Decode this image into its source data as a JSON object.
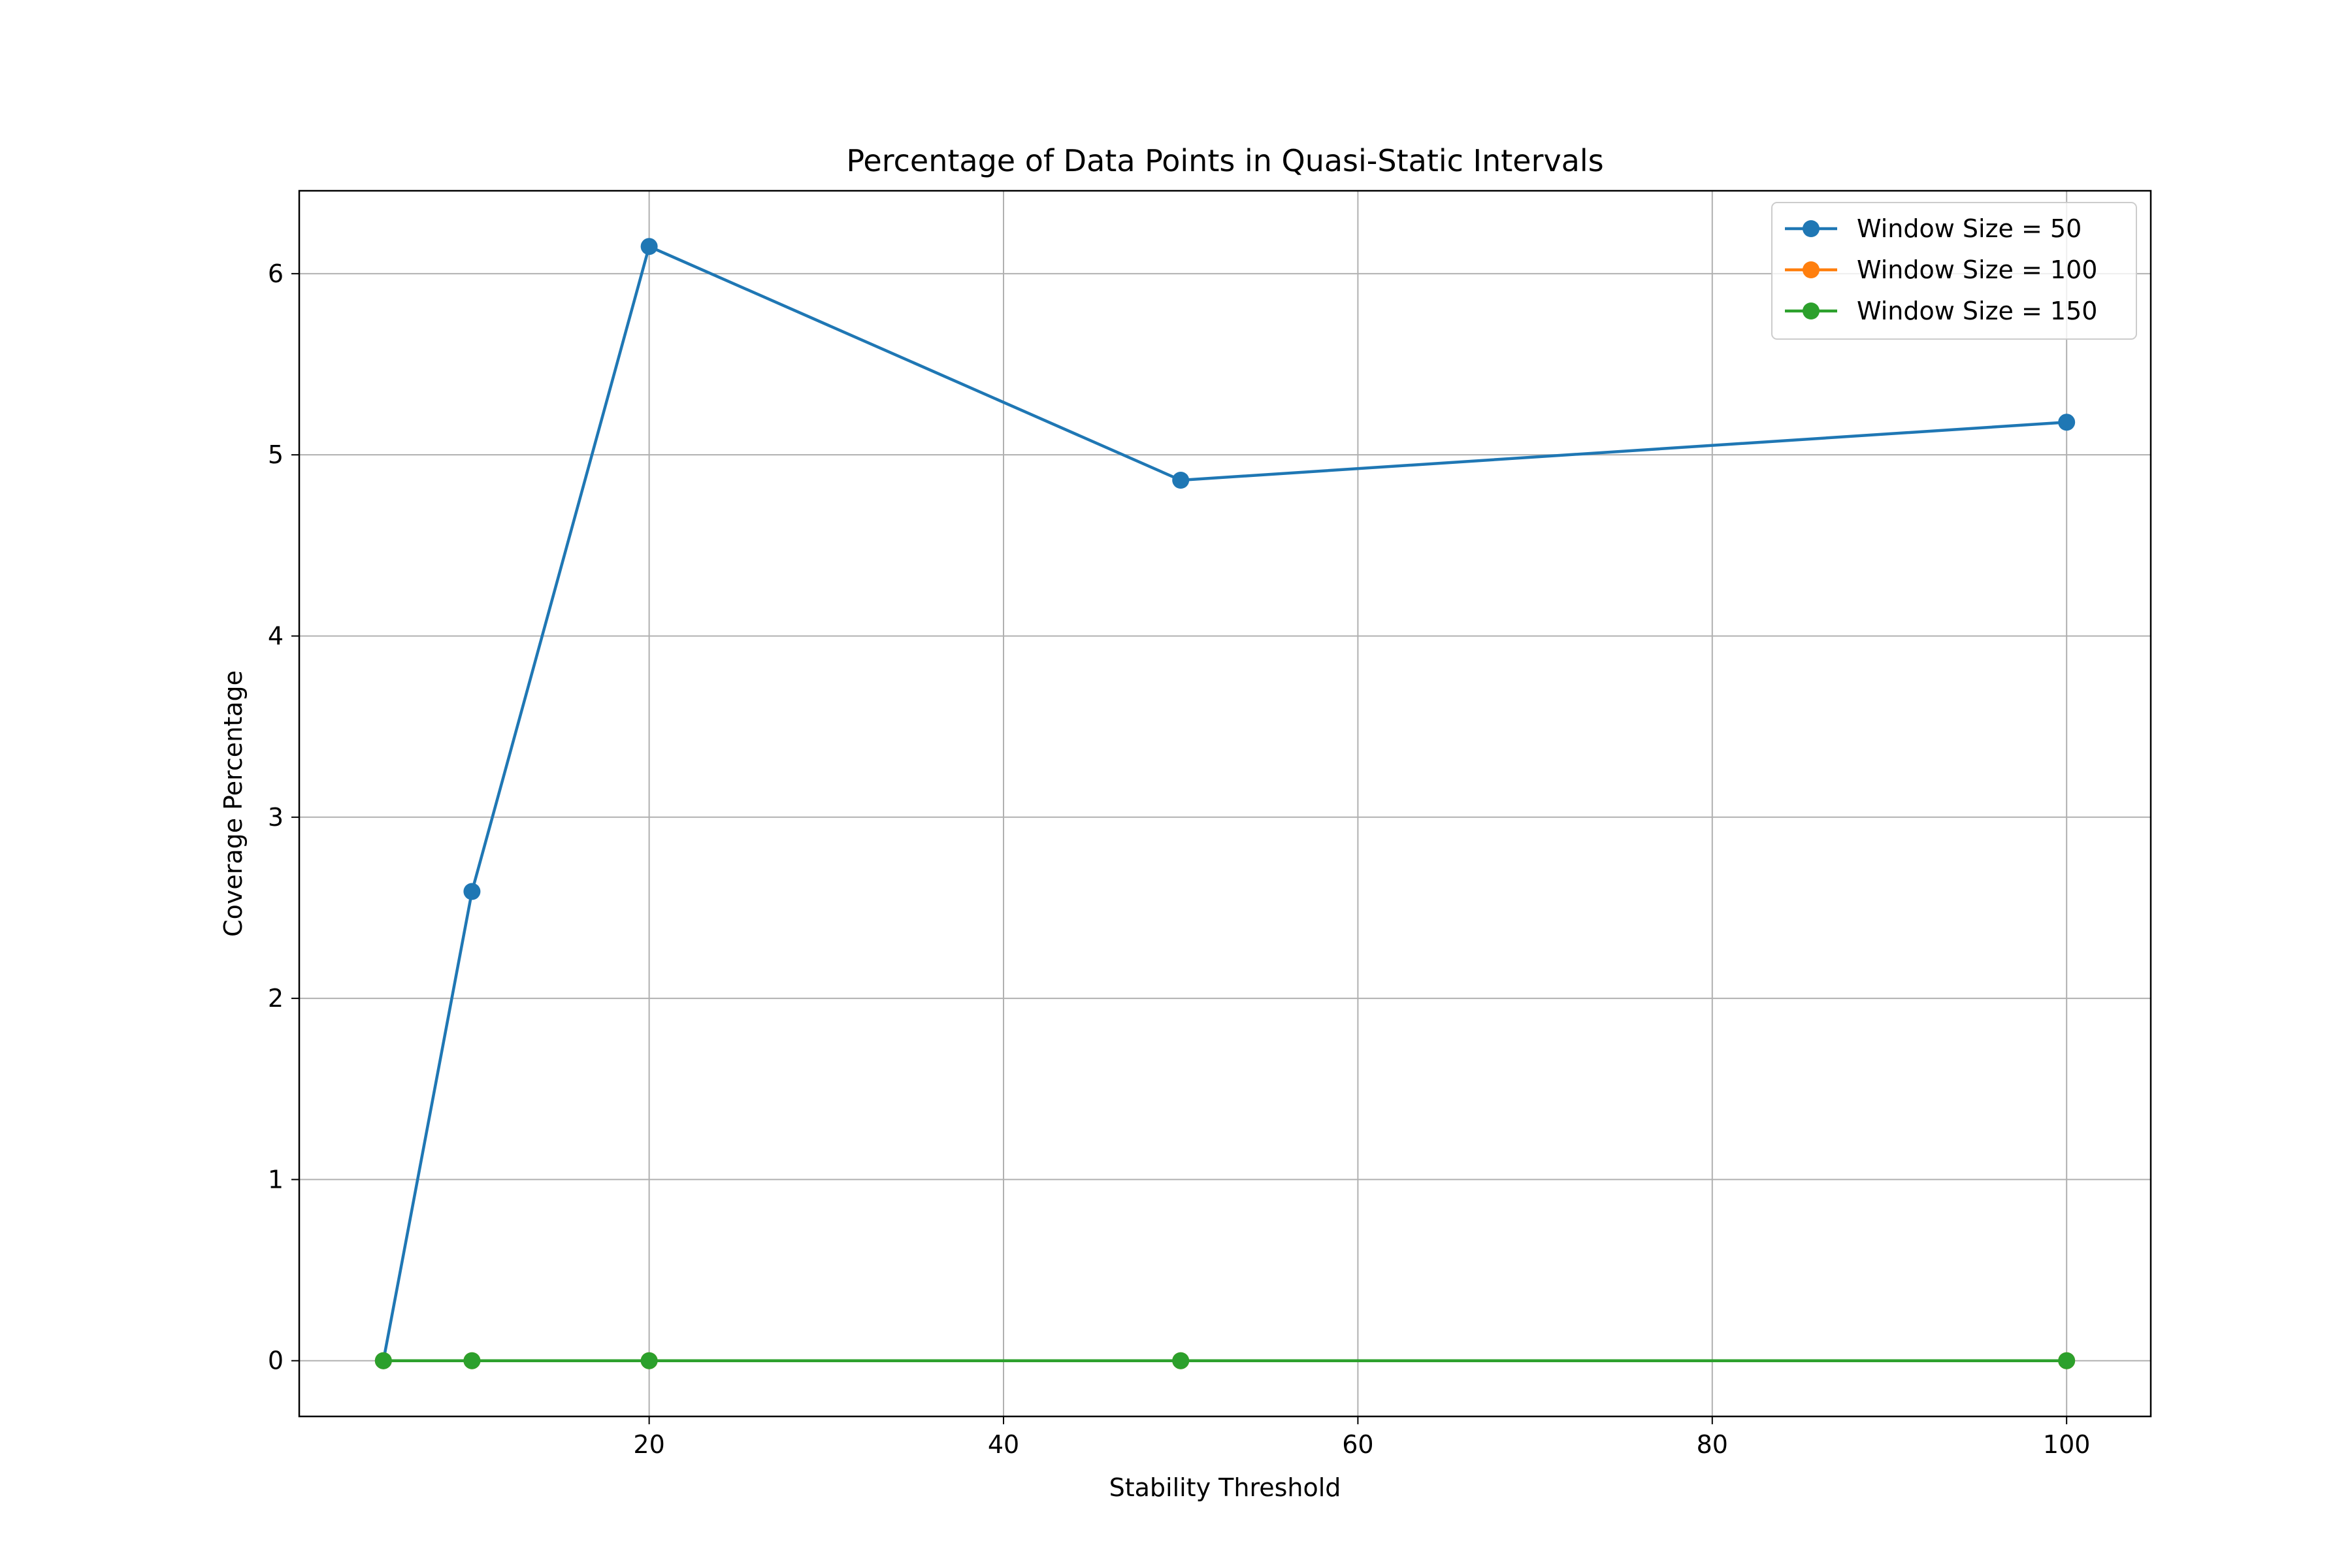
{
  "chart_data": {
    "type": "line",
    "title": "Percentage of Data Points in Quasi-Static Intervals",
    "xlabel": "Stability Threshold",
    "ylabel": "Coverage Percentage",
    "x": [
      5,
      10,
      20,
      50,
      100
    ],
    "series": [
      {
        "name": "Window Size = 50",
        "values": [
          0,
          2.59,
          6.15,
          4.86,
          5.18
        ],
        "color": "#1f77b4"
      },
      {
        "name": "Window Size = 100",
        "values": [
          0,
          0,
          0,
          0,
          0
        ],
        "color": "#ff7f0e"
      },
      {
        "name": "Window Size = 150",
        "values": [
          0,
          0,
          0,
          0,
          0
        ],
        "color": "#2ca02c"
      }
    ],
    "xlim": [
      0.25,
      104.75
    ],
    "ylim": [
      -0.3075,
      6.4575
    ],
    "xticks": [
      20,
      40,
      60,
      80,
      100
    ],
    "yticks": [
      0,
      1,
      2,
      3,
      4,
      5,
      6
    ],
    "grid": true,
    "legend_position": "top-right",
    "marker": "circle"
  }
}
